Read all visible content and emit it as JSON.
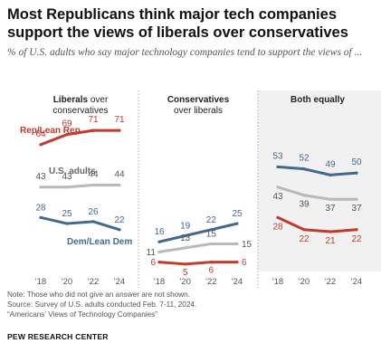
{
  "title": "Most Republicans think major tech companies support the views of liberals over conservatives",
  "subtitle": "% of U.S. adults who say major technology companies tend to support the views of ...",
  "chart_data": {
    "type": "line",
    "x": [
      "'18",
      "'20",
      "'22",
      "'24"
    ],
    "ylim": [
      0,
      80
    ],
    "grid": false,
    "colors": {
      "rep": "#c33a2f",
      "total": "#b9b9b9",
      "dem": "#43698f"
    },
    "panels": [
      {
        "title_bold": "Liberals",
        "title_rest": " over conservatives",
        "series": [
          {
            "key": "rep",
            "name": "Rep/Lean Rep",
            "values": [
              64,
              69,
              71,
              71
            ],
            "labels": [
              "64",
              "69",
              "71",
              "71"
            ]
          },
          {
            "key": "total",
            "name": "U.S. adults",
            "values": [
              43,
              43,
              44,
              44
            ],
            "labels": [
              "43",
              "43",
              "44",
              "44"
            ]
          },
          {
            "key": "dem",
            "name": "Dem/Lean Dem",
            "values": [
              28,
              25,
              26,
              22
            ],
            "labels": [
              "28",
              "25",
              "26",
              "22"
            ]
          }
        ]
      },
      {
        "title_bold": "Conservatives",
        "title_rest": " over liberals",
        "series": [
          {
            "key": "dem",
            "name": "Dem/Lean Dem",
            "values": [
              16,
              19,
              22,
              25
            ],
            "labels": [
              "16",
              "19",
              "22",
              "25"
            ]
          },
          {
            "key": "total",
            "name": "U.S. adults",
            "values": [
              11,
              13,
              15,
              15
            ],
            "labels": [
              "11",
              "13",
              "15",
              "15"
            ]
          },
          {
            "key": "rep",
            "name": "Rep/Lean Rep",
            "values": [
              6,
              5,
              6,
              6
            ],
            "labels": [
              "6",
              "5",
              "6",
              "6"
            ]
          }
        ]
      },
      {
        "title_bold": "Both equally",
        "title_rest": "",
        "series": [
          {
            "key": "dem",
            "name": "Dem/Lean Dem",
            "values": [
              53,
              52,
              49,
              50
            ],
            "labels": [
              "53",
              "52",
              "49",
              "50"
            ]
          },
          {
            "key": "total",
            "name": "U.S. adults",
            "values": [
              43,
              39,
              37,
              37
            ],
            "labels": [
              "43",
              "39",
              "37",
              "37"
            ]
          },
          {
            "key": "rep",
            "name": "Rep/Lean Rep",
            "values": [
              28,
              22,
              21,
              22
            ],
            "labels": [
              "28",
              "22",
              "21",
              "22"
            ]
          }
        ]
      }
    ]
  },
  "notes": {
    "note": "Note: Those who did not give an answer are not shown.",
    "source": "Source: Survey of U.S. adults conducted Feb. 7-11, 2024.",
    "report": "“Americans’ Views of Technology Companies”"
  },
  "brand": "PEW RESEARCH CENTER"
}
